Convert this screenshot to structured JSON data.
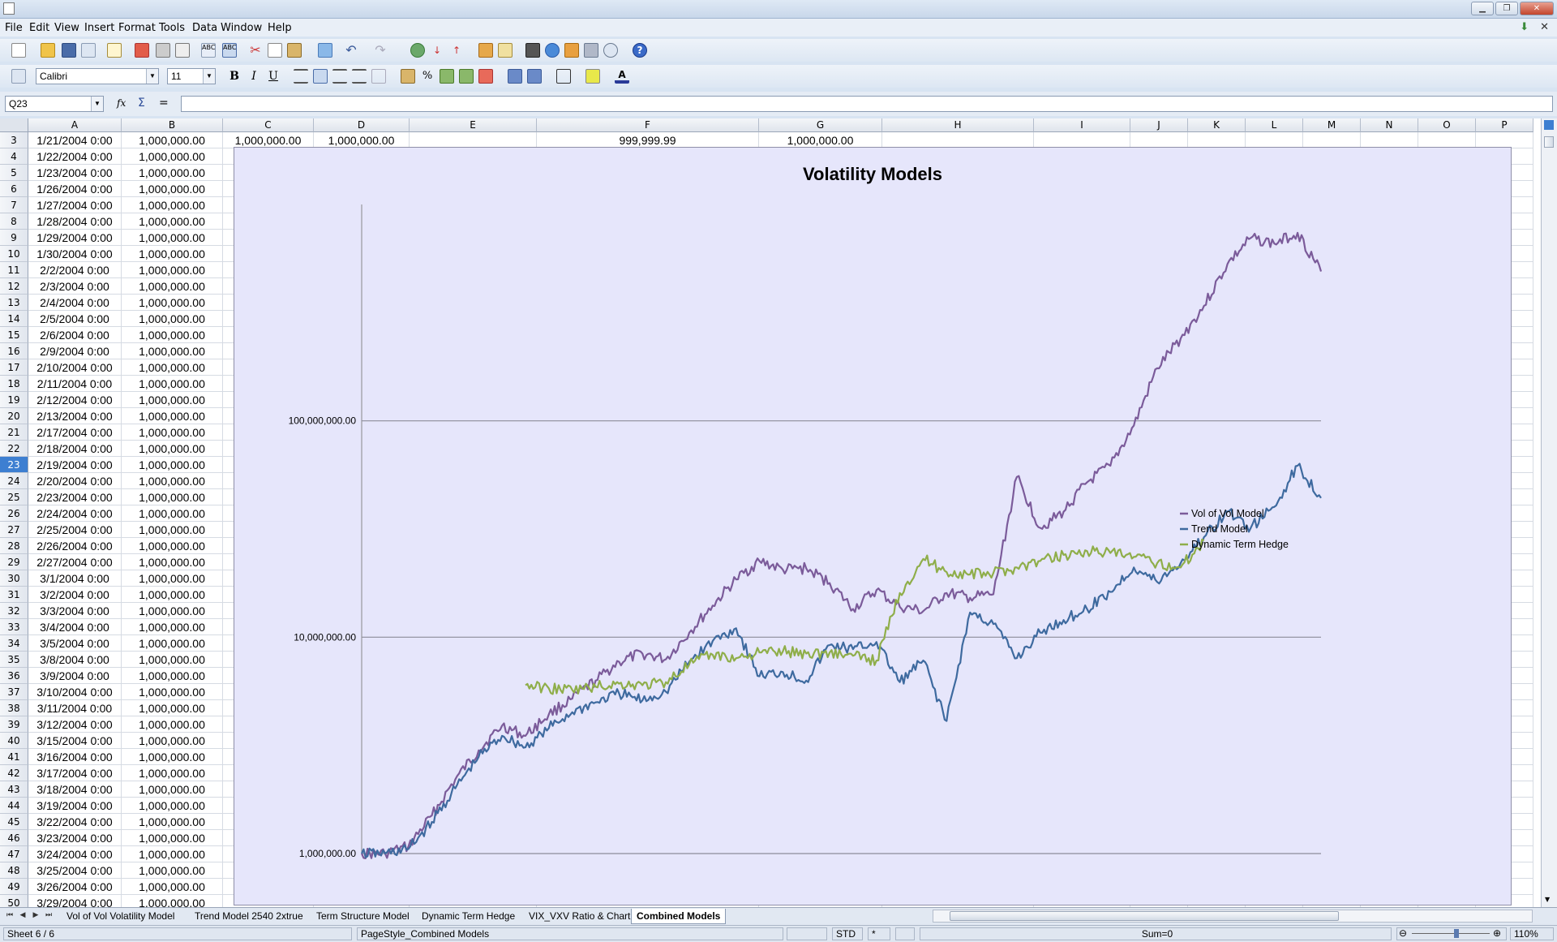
{
  "menu": [
    "File",
    "Edit",
    "View",
    "Insert",
    "Format",
    "Tools",
    "Data",
    "Window",
    "Help"
  ],
  "toolbar": {
    "font_name": "Calibri",
    "font_size": "11",
    "bold": "B",
    "italic": "I",
    "underline": "U",
    "percent": "%"
  },
  "formula_bar": {
    "cell_ref": "Q23",
    "content": "",
    "fx": "fx",
    "sum": "Σ",
    "equals": "="
  },
  "columns": [
    "A",
    "B",
    "C",
    "D",
    "E",
    "F",
    "G",
    "H",
    "I",
    "J",
    "K",
    "L",
    "M",
    "N",
    "O",
    "P"
  ],
  "rows": [
    {
      "n": "3",
      "a": "1/21/2004 0:00",
      "b": "1,000,000.00",
      "c": "1,000,000.00",
      "d": "1,000,000.00",
      "f": "999,999.99",
      "g": "1,000,000.00"
    },
    {
      "n": "4",
      "a": "1/22/2004 0:00",
      "b": "1,000,000.00"
    },
    {
      "n": "5",
      "a": "1/23/2004 0:00",
      "b": "1,000,000.00"
    },
    {
      "n": "6",
      "a": "1/26/2004 0:00",
      "b": "1,000,000.00"
    },
    {
      "n": "7",
      "a": "1/27/2004 0:00",
      "b": "1,000,000.00"
    },
    {
      "n": "8",
      "a": "1/28/2004 0:00",
      "b": "1,000,000.00"
    },
    {
      "n": "9",
      "a": "1/29/2004 0:00",
      "b": "1,000,000.00"
    },
    {
      "n": "10",
      "a": "1/30/2004 0:00",
      "b": "1,000,000.00"
    },
    {
      "n": "11",
      "a": "2/2/2004 0:00",
      "b": "1,000,000.00"
    },
    {
      "n": "12",
      "a": "2/3/2004 0:00",
      "b": "1,000,000.00"
    },
    {
      "n": "13",
      "a": "2/4/2004 0:00",
      "b": "1,000,000.00"
    },
    {
      "n": "14",
      "a": "2/5/2004 0:00",
      "b": "1,000,000.00"
    },
    {
      "n": "15",
      "a": "2/6/2004 0:00",
      "b": "1,000,000.00"
    },
    {
      "n": "16",
      "a": "2/9/2004 0:00",
      "b": "1,000,000.00"
    },
    {
      "n": "17",
      "a": "2/10/2004 0:00",
      "b": "1,000,000.00"
    },
    {
      "n": "18",
      "a": "2/11/2004 0:00",
      "b": "1,000,000.00"
    },
    {
      "n": "19",
      "a": "2/12/2004 0:00",
      "b": "1,000,000.00"
    },
    {
      "n": "20",
      "a": "2/13/2004 0:00",
      "b": "1,000,000.00"
    },
    {
      "n": "21",
      "a": "2/17/2004 0:00",
      "b": "1,000,000.00"
    },
    {
      "n": "22",
      "a": "2/18/2004 0:00",
      "b": "1,000,000.00"
    },
    {
      "n": "23",
      "a": "2/19/2004 0:00",
      "b": "1,000,000.00"
    },
    {
      "n": "24",
      "a": "2/20/2004 0:00",
      "b": "1,000,000.00"
    },
    {
      "n": "25",
      "a": "2/23/2004 0:00",
      "b": "1,000,000.00"
    },
    {
      "n": "26",
      "a": "2/24/2004 0:00",
      "b": "1,000,000.00"
    },
    {
      "n": "27",
      "a": "2/25/2004 0:00",
      "b": "1,000,000.00"
    },
    {
      "n": "28",
      "a": "2/26/2004 0:00",
      "b": "1,000,000.00"
    },
    {
      "n": "29",
      "a": "2/27/2004 0:00",
      "b": "1,000,000.00"
    },
    {
      "n": "30",
      "a": "3/1/2004 0:00",
      "b": "1,000,000.00"
    },
    {
      "n": "31",
      "a": "3/2/2004 0:00",
      "b": "1,000,000.00"
    },
    {
      "n": "32",
      "a": "3/3/2004 0:00",
      "b": "1,000,000.00"
    },
    {
      "n": "33",
      "a": "3/4/2004 0:00",
      "b": "1,000,000.00"
    },
    {
      "n": "34",
      "a": "3/5/2004 0:00",
      "b": "1,000,000.00"
    },
    {
      "n": "35",
      "a": "3/8/2004 0:00",
      "b": "1,000,000.00"
    },
    {
      "n": "36",
      "a": "3/9/2004 0:00",
      "b": "1,000,000.00"
    },
    {
      "n": "37",
      "a": "3/10/2004 0:00",
      "b": "1,000,000.00"
    },
    {
      "n": "38",
      "a": "3/11/2004 0:00",
      "b": "1,000,000.00"
    },
    {
      "n": "39",
      "a": "3/12/2004 0:00",
      "b": "1,000,000.00"
    },
    {
      "n": "40",
      "a": "3/15/2004 0:00",
      "b": "1,000,000.00"
    },
    {
      "n": "41",
      "a": "3/16/2004 0:00",
      "b": "1,000,000.00"
    },
    {
      "n": "42",
      "a": "3/17/2004 0:00",
      "b": "1,000,000.00"
    },
    {
      "n": "43",
      "a": "3/18/2004 0:00",
      "b": "1,000,000.00"
    },
    {
      "n": "44",
      "a": "3/19/2004 0:00",
      "b": "1,000,000.00"
    },
    {
      "n": "45",
      "a": "3/22/2004 0:00",
      "b": "1,000,000.00"
    },
    {
      "n": "46",
      "a": "3/23/2004 0:00",
      "b": "1,000,000.00"
    },
    {
      "n": "47",
      "a": "3/24/2004 0:00",
      "b": "1,000,000.00"
    },
    {
      "n": "48",
      "a": "3/25/2004 0:00",
      "b": "1,000,000.00"
    },
    {
      "n": "49",
      "a": "3/26/2004 0:00",
      "b": "1,000,000.00"
    },
    {
      "n": "50",
      "a": "3/29/2004 0:00",
      "b": "1,000,000.00"
    }
  ],
  "selected_row": "23",
  "sheet_tabs": [
    "Vol of Vol Volatility Model",
    "Trend Model 2540 2xtrue",
    "Term Structure Model",
    "Dynamic Term Hedge",
    "VIX_VXV Ratio & Chart",
    "Combined Models"
  ],
  "active_tab": "Combined Models",
  "status": {
    "sheet": "Sheet 6 / 6",
    "page_style": "PageStyle_Combined Models",
    "mode": "STD",
    "modified": "*",
    "sum": "Sum=0",
    "zoom": "110%"
  },
  "chart_data": {
    "type": "line",
    "title": "Volatility Models",
    "xlabel": "",
    "ylabel": "",
    "y_scale": "log",
    "yticks": [
      "1,000,000.00",
      "10,000,000.00",
      "100,000,000.00"
    ],
    "ylim": [
      1000000,
      1000000000
    ],
    "legend_position": "right",
    "grid": "horizontal major",
    "series": [
      {
        "name": "Vol of Vol Model",
        "color": "#7b5b9a",
        "values": [
          1000000,
          1000000,
          1080000,
          1500000,
          2200000,
          3000000,
          3900000,
          3500000,
          4400000,
          5200000,
          6300000,
          7700000,
          8400000,
          7900000,
          10500000,
          14000000,
          18500000,
          22500000,
          20500000,
          20800000,
          17800000,
          13500000,
          16500000,
          13800000,
          13200000,
          16000000,
          15200000,
          15800000,
          55000000,
          32000000,
          38000000,
          52000000,
          62000000,
          95000000,
          175000000,
          240000000,
          340000000,
          530000000,
          700000000,
          660000000,
          740000000,
          490000000
        ]
      },
      {
        "name": "Trend Model",
        "color": "#3e6a9f",
        "values": [
          1000000,
          1000000,
          1050000,
          1400000,
          2000000,
          2800000,
          3500000,
          3100000,
          3800000,
          4500000,
          5000000,
          5500000,
          5100000,
          5600000,
          7700000,
          9600000,
          11000000,
          6600000,
          6900000,
          6300000,
          9200000,
          8800000,
          9500000,
          6200000,
          7800000,
          4100000,
          13000000,
          11500000,
          8000000,
          10500000,
          12000000,
          13500000,
          16200000,
          21000000,
          18000000,
          22000000,
          29000000,
          38000000,
          32000000,
          40000000,
          62000000,
          44000000
        ]
      },
      {
        "name": "Dynamic Term Hedge",
        "color": "#8fae4a",
        "values": [
          null,
          null,
          null,
          null,
          null,
          null,
          null,
          6000000,
          5800000,
          5700000,
          5900000,
          6100000,
          6000000,
          6200000,
          7500000,
          8300000,
          8000000,
          8500000,
          8600000,
          8400000,
          8500000,
          8200000,
          7800000,
          16000000,
          23000000,
          20000000,
          19500000,
          19800000,
          21000000,
          22500000,
          24000000,
          25000000,
          24500000,
          23500000,
          22000000,
          21000000,
          28000000
        ]
      }
    ]
  }
}
